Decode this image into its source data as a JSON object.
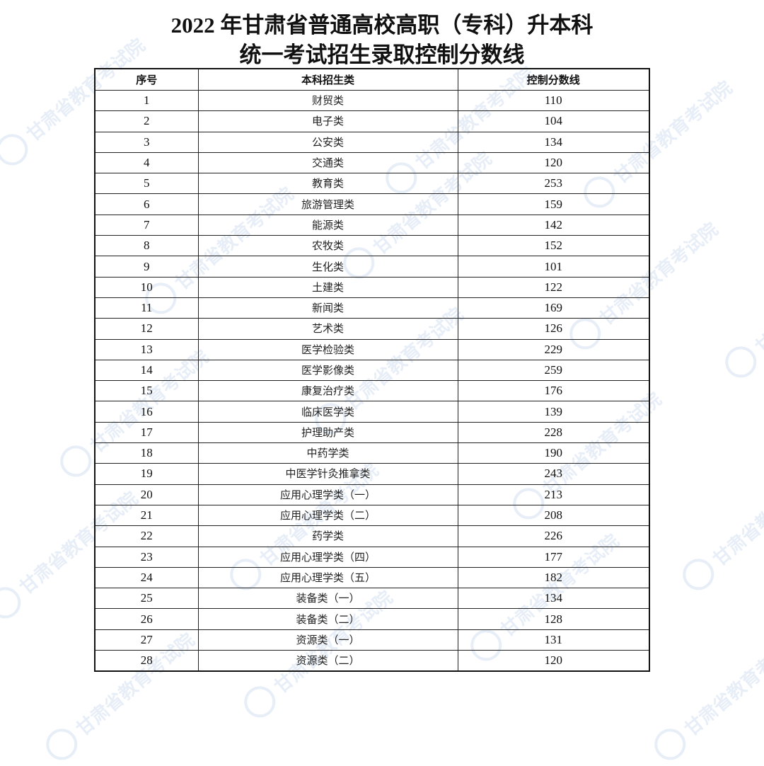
{
  "title": {
    "line1": "2022 年甘肃省普通高校高职（专科）升本科",
    "line2": "统一考试招生录取控制分数线"
  },
  "table": {
    "headers": [
      "序号",
      "本科招生类",
      "控制分数线"
    ],
    "rows": [
      [
        "1",
        "财贸类",
        "110"
      ],
      [
        "2",
        "电子类",
        "104"
      ],
      [
        "3",
        "公安类",
        "134"
      ],
      [
        "4",
        "交通类",
        "120"
      ],
      [
        "5",
        "教育类",
        "253"
      ],
      [
        "6",
        "旅游管理类",
        "159"
      ],
      [
        "7",
        "能源类",
        "142"
      ],
      [
        "8",
        "农牧类",
        "152"
      ],
      [
        "9",
        "生化类",
        "101"
      ],
      [
        "10",
        "土建类",
        "122"
      ],
      [
        "11",
        "新闻类",
        "169"
      ],
      [
        "12",
        "艺术类",
        "126"
      ],
      [
        "13",
        "医学检验类",
        "229"
      ],
      [
        "14",
        "医学影像类",
        "259"
      ],
      [
        "15",
        "康复治疗类",
        "176"
      ],
      [
        "16",
        "临床医学类",
        "139"
      ],
      [
        "17",
        "护理助产类",
        "228"
      ],
      [
        "18",
        "中药学类",
        "190"
      ],
      [
        "19",
        "中医学针灸推拿类",
        "243"
      ],
      [
        "20",
        "应用心理学类（一）",
        "213"
      ],
      [
        "21",
        "应用心理学类（二）",
        "208"
      ],
      [
        "22",
        "药学类",
        "226"
      ],
      [
        "23",
        "应用心理学类（四）",
        "177"
      ],
      [
        "24",
        "应用心理学类（五）",
        "182"
      ],
      [
        "25",
        "装备类（一）",
        "134"
      ],
      [
        "26",
        "装备类（二）",
        "128"
      ],
      [
        "27",
        "资源类（一）",
        "131"
      ],
      [
        "28",
        "资源类（二）",
        "120"
      ]
    ]
  },
  "watermark": {
    "text": "甘肃省教育考试院",
    "color": "#4678be"
  }
}
